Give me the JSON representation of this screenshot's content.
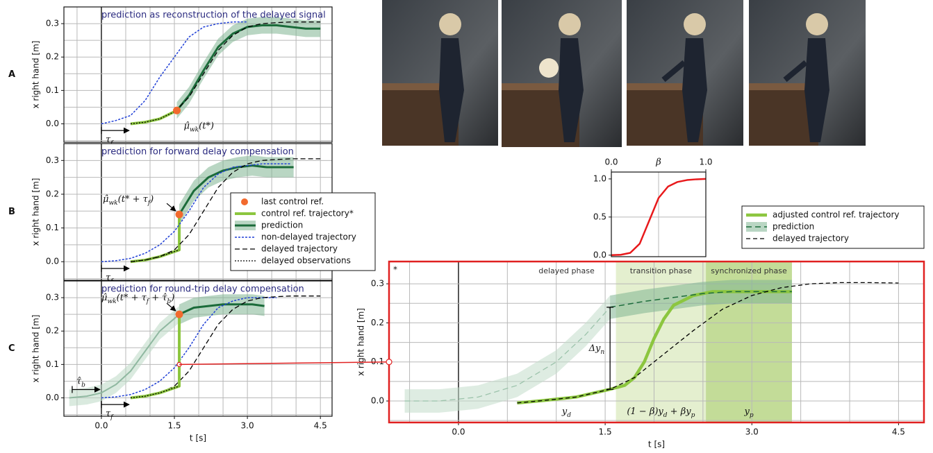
{
  "chart_data": [
    {
      "type": "line",
      "panel": "A",
      "title": "prediction as reconstruction of the delayed signal",
      "ylabel": "x right hand [m]",
      "xlim": [
        -0.77,
        4.74
      ],
      "ylim": [
        -0.055,
        0.35
      ],
      "yticks": [
        {
          "value": 0,
          "label": "0.0"
        },
        0.1,
        0.2,
        0.3
      ],
      "xgrid": [
        -0.5,
        0,
        0.5,
        1,
        1.5,
        2,
        2.5,
        3,
        3.5,
        4,
        4.5
      ],
      "ygrid": [
        -0.05,
        0,
        0.05,
        0.1,
        0.15,
        0.2,
        0.25,
        0.3
      ],
      "xzero": true,
      "series": [
        {
          "x": [
            1.55,
            1.8,
            2.1,
            2.4,
            2.7,
            3.0,
            3.3,
            3.6,
            3.9,
            4.2,
            4.5
          ],
          "values": [
            0.04,
            0.085,
            0.16,
            0.23,
            0.27,
            0.29,
            0.295,
            0.295,
            0.29,
            0.285,
            0.285
          ],
          "color": "#1b6b3a",
          "width": 3,
          "band": 0.025,
          "band_color": "#7fb592"
        },
        {
          "x": [
            0,
            0.3,
            0.6,
            0.9,
            1.2,
            1.5,
            1.8,
            2.1,
            2.4,
            2.7,
            3.0
          ],
          "values": [
            0,
            0.01,
            0.025,
            0.07,
            0.14,
            0.2,
            0.26,
            0.29,
            0.3,
            0.305,
            0.305
          ],
          "color": "#1f3fd6",
          "width": 1.5,
          "dash": "3 2"
        },
        {
          "x": [
            0.6,
            0.9,
            1.2,
            1.5,
            1.8,
            2.1,
            2.4,
            2.7,
            3.0,
            3.3,
            3.6,
            3.9,
            4.2,
            4.5
          ],
          "values": [
            0,
            0.005,
            0.015,
            0.035,
            0.08,
            0.15,
            0.22,
            0.265,
            0.29,
            0.3,
            0.303,
            0.305,
            0.305,
            0.305
          ],
          "color": "#000000",
          "width": 1.3,
          "dash": "7 4"
        },
        {
          "x": [
            0.6,
            0.9,
            1.2,
            1.55
          ],
          "values": [
            0,
            0.005,
            0.015,
            0.04
          ],
          "color": "#8cc63f",
          "width": 4
        },
        {
          "x": [
            0.6,
            0.9,
            1.2,
            1.55
          ],
          "values": [
            0,
            0.005,
            0.015,
            0.04
          ],
          "color": "#000000",
          "width": 1.3,
          "dash": "2 2"
        }
      ],
      "points": [
        {
          "x": 1.55,
          "y": 0.04,
          "color": "#f26a2e"
        }
      ],
      "annotation": [
        "μ̂",
        "wk",
        "(t*)"
      ],
      "delays": [
        {
          "label": [
            "τ",
            "f"
          ],
          "from": 0,
          "to": 0.6
        }
      ]
    },
    {
      "type": "line",
      "panel": "B",
      "title": "prediction for forward delay compensation",
      "ylabel": "x right hand [m]",
      "xlim": [
        -0.77,
        4.74
      ],
      "ylim": [
        -0.055,
        0.35
      ],
      "yticks": [
        {
          "value": 0,
          "label": "0.0"
        },
        0.1,
        0.2,
        0.3
      ],
      "xgrid": [
        -0.5,
        0,
        0.5,
        1,
        1.5,
        2,
        2.5,
        3,
        3.5,
        4,
        4.5
      ],
      "ygrid": [
        -0.05,
        0,
        0.05,
        0.1,
        0.15,
        0.2,
        0.25,
        0.3
      ],
      "xzero": true,
      "legend": "lower right",
      "series": [
        {
          "name": "control ref. trajectory*",
          "x": [
            0.6,
            0.9,
            1.2,
            1.6,
            1.6
          ],
          "values": [
            0,
            0.005,
            0.015,
            0.035,
            0.14
          ],
          "color": "#8cc63f",
          "width": 4
        },
        {
          "name": "prediction",
          "x": [
            1.6,
            1.9,
            2.2,
            2.5,
            2.8,
            3.1,
            3.4,
            3.7,
            3.95
          ],
          "values": [
            0.14,
            0.21,
            0.25,
            0.27,
            0.28,
            0.285,
            0.28,
            0.28,
            0.28
          ],
          "color": "#1b6b3a",
          "width": 3,
          "band": 0.03,
          "band_color": "#7fb592"
        },
        {
          "name": "non-delayed trajectory",
          "x": [
            0,
            0.3,
            0.6,
            0.9,
            1.2,
            1.5,
            1.8,
            2.1,
            2.4,
            2.7,
            3.0,
            3.3,
            3.6,
            3.9
          ],
          "values": [
            0,
            0.003,
            0.01,
            0.025,
            0.05,
            0.09,
            0.15,
            0.22,
            0.26,
            0.28,
            0.285,
            0.29,
            0.29,
            0.29
          ],
          "color": "#1f3fd6",
          "width": 1.5,
          "dash": "3 2"
        },
        {
          "name": "delayed trajectory",
          "x": [
            0.6,
            0.9,
            1.2,
            1.5,
            1.8,
            2.1,
            2.4,
            2.7,
            3.0,
            3.3,
            3.6,
            3.9,
            4.2,
            4.5
          ],
          "values": [
            0,
            0.005,
            0.015,
            0.035,
            0.08,
            0.15,
            0.22,
            0.265,
            0.29,
            0.3,
            0.303,
            0.305,
            0.305,
            0.305
          ],
          "color": "#000000",
          "width": 1.3,
          "dash": "7 4"
        },
        {
          "name": "delayed observations",
          "x": [
            0.6,
            0.9,
            1.2,
            1.6
          ],
          "values": [
            0,
            0.005,
            0.015,
            0.035
          ],
          "color": "#000000",
          "width": 1.3,
          "dash": "2 2"
        }
      ],
      "points": [
        {
          "name": "last control ref.",
          "x": 1.6,
          "y": 0.14,
          "color": "#f26a2e"
        }
      ],
      "annotation": [
        "μ̂",
        "wk",
        "(t* + τ",
        "f",
        ")"
      ],
      "delays": [
        {
          "label": [
            "τ",
            "f"
          ],
          "from": 0,
          "to": 0.6
        }
      ]
    },
    {
      "type": "line",
      "panel": "C",
      "title": "prediction for round-trip delay compensation",
      "ylabel": "x right hand [m]",
      "xlabel": "t [s]",
      "xlim": [
        -0.77,
        4.74
      ],
      "ylim": [
        -0.055,
        0.35
      ],
      "yticks": [
        {
          "value": 0,
          "label": "0.0"
        },
        0.1,
        0.2,
        0.3
      ],
      "xticks": [
        {
          "value": 0,
          "label": "0.0"
        },
        1.5,
        {
          "value": 3,
          "label": "3.0"
        },
        4.5
      ],
      "xgrid": [
        -0.5,
        0,
        0.5,
        1,
        1.5,
        2,
        2.5,
        3,
        3.5,
        4,
        4.5
      ],
      "ygrid": [
        -0.05,
        0,
        0.05,
        0.1,
        0.15,
        0.2,
        0.25,
        0.3
      ],
      "xzero": true,
      "series": [
        {
          "x": [
            -0.66,
            -0.3,
            0,
            0.3,
            0.6,
            0.9,
            1.2,
            1.6
          ],
          "values": [
            0,
            0.005,
            0.015,
            0.04,
            0.08,
            0.14,
            0.2,
            0.25
          ],
          "color": "#8fb8a0",
          "width": 2,
          "band": 0.025,
          "band_color": "#bcd8c5"
        },
        {
          "x": [
            1.6,
            1.9,
            2.2,
            2.5,
            2.8,
            3.1,
            3.35
          ],
          "values": [
            0.25,
            0.27,
            0.275,
            0.28,
            0.28,
            0.28,
            0.275
          ],
          "color": "#1b6b3a",
          "width": 3,
          "band": 0.03,
          "band_color": "#7fb592"
        },
        {
          "x": [
            0,
            0.3,
            0.6,
            0.9,
            1.2,
            1.5,
            1.8,
            2.1,
            2.4,
            2.7,
            3.0,
            3.3,
            3.6
          ],
          "values": [
            0,
            0.003,
            0.01,
            0.025,
            0.05,
            0.09,
            0.15,
            0.22,
            0.27,
            0.29,
            0.3,
            0.3,
            0.3
          ],
          "color": "#1f3fd6",
          "width": 1.5,
          "dash": "3 2"
        },
        {
          "x": [
            0.6,
            0.9,
            1.2,
            1.5,
            1.8,
            2.1,
            2.4,
            2.7,
            3.0,
            3.3,
            3.6,
            3.9,
            4.2,
            4.5
          ],
          "values": [
            0,
            0.005,
            0.015,
            0.035,
            0.08,
            0.15,
            0.22,
            0.265,
            0.29,
            0.3,
            0.303,
            0.305,
            0.305,
            0.305
          ],
          "color": "#000000",
          "width": 1.3,
          "dash": "7 4"
        },
        {
          "x": [
            0.6,
            0.9,
            1.2,
            1.6,
            1.6
          ],
          "values": [
            0,
            0.005,
            0.015,
            0.035,
            0.25
          ],
          "color": "#8cc63f",
          "width": 4
        },
        {
          "x": [
            0.6,
            0.9,
            1.2,
            1.6
          ],
          "values": [
            0,
            0.005,
            0.015,
            0.035
          ],
          "color": "#000000",
          "width": 1.3,
          "dash": "2 2"
        }
      ],
      "points": [
        {
          "x": 1.6,
          "y": 0.25,
          "color": "#f26a2e"
        },
        {
          "x": 1.6,
          "y": 0.1,
          "color": "#ffffff",
          "stroke": "#e02020"
        }
      ],
      "annotation": [
        "μ̂",
        "wk",
        "(t* + τ",
        "f",
        " + τ̂",
        "b",
        ")"
      ],
      "delays": [
        {
          "label": [
            "τ",
            "f"
          ],
          "from": 0,
          "to": 0.6
        },
        {
          "label": [
            "τ̂",
            "b"
          ],
          "from": -0.6,
          "to": 0
        }
      ]
    },
    {
      "type": "line",
      "xlabel": "β",
      "xaxis_top": true,
      "xlim": [
        0,
        1
      ],
      "ylim": [
        -0.02,
        1.09
      ],
      "xticks": [
        {
          "value": 0,
          "label": "0.0"
        },
        {
          "value": 1,
          "label": "1.0"
        }
      ],
      "yticks": [
        {
          "value": 0,
          "label": "0.0"
        },
        0.5,
        {
          "value": 1,
          "label": "1.0"
        }
      ],
      "xgrid": [
        0.5
      ],
      "ygrid": [
        0.5
      ],
      "series": [
        {
          "x": [
            0,
            0.1,
            0.2,
            0.3,
            0.4,
            0.5,
            0.6,
            0.7,
            0.8,
            0.9,
            1.0
          ],
          "values": [
            0,
            0.005,
            0.03,
            0.15,
            0.45,
            0.75,
            0.9,
            0.96,
            0.985,
            0.995,
            1.0
          ],
          "color": "#e8191b",
          "width": 2.5
        }
      ]
    },
    {
      "type": "line",
      "marker": "*",
      "ylabel": "x right hand [m]",
      "xlabel": "t [s]",
      "xlim": [
        -0.71,
        4.76
      ],
      "ylim": [
        -0.055,
        0.357
      ],
      "yticks": [
        {
          "value": 0,
          "label": "0.0"
        },
        0.1,
        0.2,
        0.3
      ],
      "xticks": [
        {
          "value": 0,
          "label": "0.0"
        },
        1.5,
        {
          "value": 3,
          "label": "3.0"
        },
        4.5
      ],
      "xgrid": [
        -0.5,
        0,
        0.5,
        1,
        1.5,
        2,
        2.5,
        3,
        3.5,
        4,
        4.5
      ],
      "ygrid": [
        -0.05,
        0,
        0.05,
        0.1,
        0.15,
        0.2,
        0.25,
        0.3
      ],
      "xzero": true,
      "legend": "upper right",
      "phases": [
        {
          "label": "delayed phase",
          "formula": [
            "y",
            "d"
          ],
          "x": [
            0.6,
            1.61
          ]
        },
        {
          "label": "transition phase",
          "formula": [
            "(1 − β)y",
            "d",
            " + βy",
            "p"
          ],
          "x": [
            1.61,
            2.53
          ],
          "color": "#e4efcf"
        },
        {
          "label": "synchronized phase",
          "formula": [
            "y",
            "p"
          ],
          "x": [
            2.53,
            3.41
          ],
          "color": "#c3dc98"
        }
      ],
      "gap": [
        "Δy",
        "n"
      ],
      "series": [
        {
          "x": [
            -0.55,
            -0.2,
            0.2,
            0.6,
            1.0,
            1.3,
            1.55
          ],
          "values": [
            0,
            0,
            0.01,
            0.04,
            0.1,
            0.17,
            0.24
          ],
          "color": "#9cc3ab",
          "width": 1.3,
          "dash": "8 5",
          "band": 0.03,
          "band_color": "#c2dccb"
        },
        {
          "name": "adjusted control ref. trajectory",
          "x": [
            0.6,
            0.9,
            1.2,
            1.55,
            1.7,
            1.8,
            1.9,
            2.0,
            2.1,
            2.2,
            2.4,
            2.6,
            3.0,
            3.41
          ],
          "values": [
            -0.005,
            0.002,
            0.01,
            0.03,
            0.04,
            0.06,
            0.1,
            0.16,
            0.21,
            0.245,
            0.27,
            0.28,
            0.28,
            0.28
          ],
          "color": "#8cc63f",
          "width": 4.5
        },
        {
          "name": "prediction",
          "x": [
            1.55,
            1.9,
            2.2,
            2.5,
            2.8,
            3.1,
            3.41
          ],
          "values": [
            0.24,
            0.255,
            0.265,
            0.275,
            0.28,
            0.28,
            0.28
          ],
          "color": "#1b6b3a",
          "width": 1.5,
          "dash": "8 5",
          "band": 0.03,
          "band_color": "#7fb592"
        },
        {
          "name": "delayed trajectory",
          "x": [
            0.6,
            0.9,
            1.2,
            1.55,
            1.8,
            2.1,
            2.4,
            2.7,
            3.0,
            3.3,
            3.6,
            3.9,
            4.2,
            4.5
          ],
          "values": [
            -0.005,
            0.002,
            0.01,
            0.03,
            0.06,
            0.12,
            0.18,
            0.235,
            0.27,
            0.29,
            0.3,
            0.303,
            0.303,
            0.302
          ],
          "color": "#000000",
          "width": 1.3,
          "dash": "6 4"
        }
      ]
    }
  ]
}
